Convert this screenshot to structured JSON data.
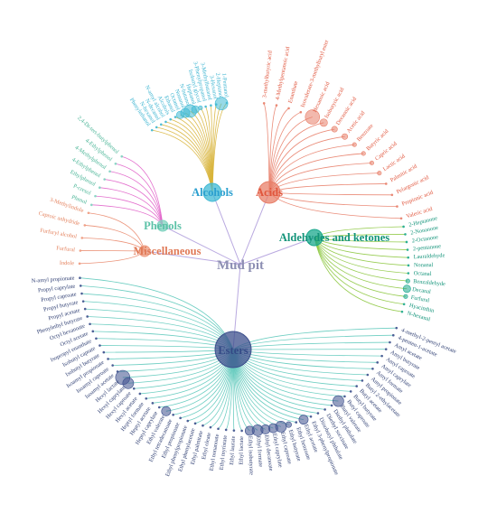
{
  "center": {
    "label": "Mud pit",
    "color": "#8d8fb3"
  },
  "categories": [
    {
      "key": "alcohols",
      "label": "Alcohols",
      "color": "#d8b43a",
      "nodeColor": "#3fb9d4",
      "labelColor": "#2a9fcf",
      "textColor": "#39b3d0",
      "items": [
        {
          "name": "Phenylethanol",
          "size": 0
        },
        {
          "name": "N-hexanol",
          "size": 0
        },
        {
          "name": "N-decanol",
          "size": 0
        },
        {
          "name": "N-amyl alcohol",
          "size": 0
        },
        {
          "name": "Alcohols",
          "size": 0
        },
        {
          "name": "Ethanol",
          "size": 0
        },
        {
          "name": "Octanol",
          "size": 3
        },
        {
          "name": "Nonanol",
          "size": 4
        },
        {
          "name": "N-butanol",
          "size": 6
        },
        {
          "name": "Heptanol",
          "size": 3
        },
        {
          "name": "Isobutyl glycol",
          "size": 1
        },
        {
          "name": "3-Phenylpropanol",
          "size": 0
        },
        {
          "name": "3-Methylbutanol",
          "size": 0
        },
        {
          "name": "3-Hexanol",
          "size": 0
        },
        {
          "name": "2-Heptanol",
          "size": 6
        },
        {
          "name": "1-Pentanol",
          "size": 0
        }
      ]
    },
    {
      "key": "acids",
      "label": "Acids",
      "color": "#e8806a",
      "nodeColor": "#e8806a",
      "labelColor": "#e0553c",
      "textColor": "#e0553c",
      "items": [
        {
          "name": "3-methylbutyric acid",
          "size": 0
        },
        {
          "name": "4-Methylpentanoic acid",
          "size": 0
        },
        {
          "name": "Enanthate",
          "size": 0
        },
        {
          "name": "Isovalerate-3-methylbutyl ester",
          "size": 0
        },
        {
          "name": "Hexanoic acid",
          "size": 7
        },
        {
          "name": "Isobutyric acid",
          "size": 3
        },
        {
          "name": "Decanoic acid",
          "size": 2
        },
        {
          "name": "Acetic acid",
          "size": 2
        },
        {
          "name": "Benzoate",
          "size": 1
        },
        {
          "name": "Butyric acid",
          "size": 1
        },
        {
          "name": "Capric acid",
          "size": 1
        },
        {
          "name": "Lactic acid",
          "size": 1
        },
        {
          "name": "Palmitic acid",
          "size": 0
        },
        {
          "name": "Pelargonic acid",
          "size": 0
        },
        {
          "name": "Propionic acid",
          "size": 0
        },
        {
          "name": "Valeric acid",
          "size": 0
        }
      ]
    },
    {
      "key": "aldehydes",
      "label": "Aldehydes and ketones",
      "color": "#8cc63e",
      "nodeColor": "#1aa88c",
      "labelColor": "#13947a",
      "textColor": "#13947a",
      "items": [
        {
          "name": "2-Heptanone",
          "size": 0
        },
        {
          "name": "2-Nonanone",
          "size": 0
        },
        {
          "name": "2-Octanone",
          "size": 0
        },
        {
          "name": "2-pentanone",
          "size": 0
        },
        {
          "name": "Lauraldehyde",
          "size": 0
        },
        {
          "name": "Nonanal",
          "size": 0
        },
        {
          "name": "Octanal",
          "size": 0
        },
        {
          "name": "Benzaldehyde",
          "size": 1
        },
        {
          "name": "Decanal",
          "size": 3
        },
        {
          "name": "Furfural",
          "size": 1
        },
        {
          "name": "Hyacinthin",
          "size": 0
        },
        {
          "name": "N-hexanal",
          "size": 0
        }
      ]
    },
    {
      "key": "esters",
      "label": "Esters",
      "color": "#5ec9bb",
      "nodeColor": "#3c4f8c",
      "labelColor": "#344a86",
      "textColor": "#2f3f73",
      "items": [
        {
          "name": "4-methyl-2-pentyl acetate",
          "size": 0
        },
        {
          "name": "4-penten-1-acetate",
          "size": 0
        },
        {
          "name": "Amyl acetate",
          "size": 0
        },
        {
          "name": "Amyl butyrate",
          "size": 0
        },
        {
          "name": "Amyl caproate",
          "size": 0
        },
        {
          "name": "Amyl caprylate",
          "size": 0
        },
        {
          "name": "Amyl formate",
          "size": 0
        },
        {
          "name": "Amyl propionate",
          "size": 0
        },
        {
          "name": "Butyl 2-ethylacetate",
          "size": 0
        },
        {
          "name": "Butyl acetate",
          "size": 0
        },
        {
          "name": "Butyl butyrate",
          "size": 0
        },
        {
          "name": "Butyl caproate",
          "size": 0
        },
        {
          "name": "Butyl valerate",
          "size": 5
        },
        {
          "name": "Diethyl phthalate",
          "size": 0
        },
        {
          "name": "Diethyl succinate",
          "size": 0
        },
        {
          "name": "Diisobutyl phthalate",
          "size": 0
        },
        {
          "name": "Ethyl 3-phenylpropionate",
          "size": 0
        },
        {
          "name": "Ethyl acetate",
          "size": 4
        },
        {
          "name": "Ethyl benzoate",
          "size": 0
        },
        {
          "name": "Ethyl butyrate",
          "size": 2
        },
        {
          "name": "Ethyl caproate",
          "size": 5
        },
        {
          "name": "Ethyl caprylate",
          "size": 4
        },
        {
          "name": "Ethyl decanoate",
          "size": 4
        },
        {
          "name": "Ethyl formate",
          "size": 5
        },
        {
          "name": "Ethyl isobutyrate",
          "size": 4
        },
        {
          "name": "Ethyl lactate",
          "size": 0
        },
        {
          "name": "Ethyl laurate",
          "size": 0
        },
        {
          "name": "Ethyl myristate",
          "size": 0
        },
        {
          "name": "Ethyl nonanoate",
          "size": 0
        },
        {
          "name": "Ethyl oleate",
          "size": 0
        },
        {
          "name": "Ethyl palmitate",
          "size": 0
        },
        {
          "name": "Ethyl phenylacetate",
          "size": 0
        },
        {
          "name": "Ethyl phenylpropionate",
          "size": 0
        },
        {
          "name": "Ethyl propionate",
          "size": 0
        },
        {
          "name": "Ethyl tetradecanoate",
          "size": 0
        },
        {
          "name": "Ethyl valerate",
          "size": 4
        },
        {
          "name": "Heptyl caprylate",
          "size": 0
        },
        {
          "name": "Heptyl acetate",
          "size": 0
        },
        {
          "name": "Heptyl formate",
          "size": 0
        },
        {
          "name": "Hexyl acetate",
          "size": 0
        },
        {
          "name": "Hexyl caproate",
          "size": 0
        },
        {
          "name": "Hexyl caprylate",
          "size": 5
        },
        {
          "name": "Hexyl lactate",
          "size": 7
        },
        {
          "name": "Isoamyl acetate",
          "size": 0
        },
        {
          "name": "Isoamyl caproate",
          "size": 0
        },
        {
          "name": "Isoamyl propionate",
          "size": 0
        },
        {
          "name": "Isobutyl butyrate",
          "size": 0
        },
        {
          "name": "Isobutyl caprate",
          "size": 0
        },
        {
          "name": "Isopropyl enanthate",
          "size": 0
        },
        {
          "name": "Octyl acetate",
          "size": 0
        },
        {
          "name": "Octyl hexanoate",
          "size": 0
        },
        {
          "name": "Phenylethyl butyrate",
          "size": 0
        },
        {
          "name": "Propyl acetate",
          "size": 0
        },
        {
          "name": "Propyl butyrate",
          "size": 0
        },
        {
          "name": "Propyl caproate",
          "size": 0
        },
        {
          "name": "Propyl caprylate",
          "size": 0
        },
        {
          "name": "N-amyl propionate",
          "size": 0
        }
      ]
    },
    {
      "key": "misc",
      "label": "Miscellaneous",
      "color": "#e9876a",
      "nodeColor": "#ee9a7e",
      "labelColor": "#e07a57",
      "textColor": "#e4835f",
      "items": [
        {
          "name": "Indole",
          "size": 0
        },
        {
          "name": "Furfural",
          "size": 0
        },
        {
          "name": "Furfuryl alcohol",
          "size": 0
        },
        {
          "name": "Caproic anhydride",
          "size": 0
        },
        {
          "name": "3-Methylindole",
          "size": 0
        }
      ]
    },
    {
      "key": "phenols",
      "label": "Phenols",
      "color": "#e05fc8",
      "nodeColor": "#80d3c0",
      "labelColor": "#5dc2a8",
      "textColor": "#46b394",
      "items": [
        {
          "name": "Phenol",
          "size": 0
        },
        {
          "name": "P-cresol",
          "size": 0
        },
        {
          "name": "Ethylphenol",
          "size": 0
        },
        {
          "name": "4-Ethylphenol",
          "size": 0
        },
        {
          "name": "4-Methylphenol",
          "size": 0
        },
        {
          "name": "4-Ethylphenol",
          "size": 0
        },
        {
          "name": "2,4-Di-tert-butylphenol",
          "size": 0
        }
      ]
    }
  ]
}
